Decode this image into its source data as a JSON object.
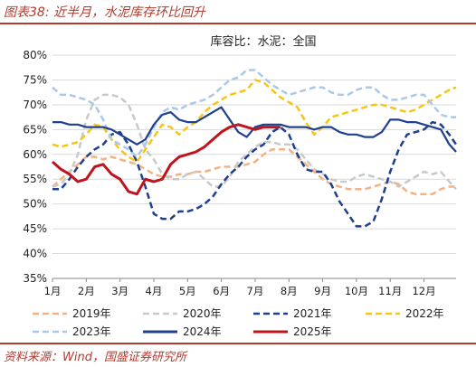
{
  "header": {
    "title": "图表38:  近半月，水泥库存环比回升"
  },
  "footer": {
    "source": "资料来源：Wind，国盛证券研究所"
  },
  "colors": {
    "header_red": "#b03a2e",
    "grid": "#d9d9d9",
    "axis_text": "#222222"
  },
  "chart_data": {
    "type": "line",
    "title": "库容比：水泥：全国",
    "xlabel": "",
    "ylabel": "",
    "x_ticks": [
      "1月",
      "2月",
      "3月",
      "4月",
      "5月",
      "6月",
      "7月",
      "8月",
      "9月",
      "10月",
      "11月",
      "12月"
    ],
    "x_range": [
      1,
      12.95
    ],
    "y_ticks": [
      "35%",
      "40%",
      "45%",
      "50%",
      "55%",
      "60%",
      "65%",
      "70%",
      "75%",
      "80%"
    ],
    "ylim": [
      35,
      80
    ],
    "grid": "horizontal",
    "legend_position": "bottom",
    "series": [
      {
        "name": "2019年",
        "color": "#f4b183",
        "dash": "dashed",
        "width": 2.5,
        "x": [
          1.0,
          1.25,
          1.5,
          1.75,
          2.0,
          2.25,
          2.5,
          2.75,
          3.0,
          3.25,
          3.5,
          3.75,
          4.0,
          4.25,
          4.5,
          4.75,
          5.0,
          5.25,
          5.5,
          5.75,
          6.0,
          6.25,
          6.5,
          6.75,
          7.0,
          7.25,
          7.5,
          7.75,
          8.0,
          8.25,
          8.5,
          8.75,
          9.0,
          9.25,
          9.5,
          9.75,
          10.0,
          10.25,
          10.5,
          10.75,
          11.0,
          11.25,
          11.5,
          11.75,
          12.0,
          12.25,
          12.5,
          12.75,
          12.95
        ],
        "y": [
          53.5,
          55.0,
          56.5,
          58.0,
          59.5,
          59.5,
          59.0,
          59.5,
          59.0,
          58.5,
          58.0,
          57.0,
          56.0,
          55.5,
          55.5,
          56.0,
          56.0,
          56.5,
          56.5,
          57.0,
          57.5,
          57.5,
          57.5,
          58.0,
          58.5,
          60.0,
          61.0,
          61.0,
          61.0,
          59.5,
          58.0,
          56.5,
          55.0,
          54.0,
          53.5,
          53.0,
          53.0,
          53.0,
          53.5,
          54.0,
          54.5,
          54.0,
          52.5,
          52.0,
          52.0,
          52.0,
          53.0,
          53.5,
          53.5
        ]
      },
      {
        "name": "2020年",
        "color": "#c9c9c9",
        "dash": "dashed",
        "width": 2.5,
        "x": [
          1.0,
          1.25,
          1.5,
          1.75,
          2.0,
          2.25,
          2.5,
          2.75,
          3.0,
          3.25,
          3.5,
          3.75,
          4.0,
          4.25,
          4.5,
          4.75,
          5.0,
          5.25,
          5.5,
          5.75,
          6.0,
          6.25,
          6.5,
          6.75,
          7.0,
          7.25,
          7.5,
          7.75,
          8.0,
          8.25,
          8.5,
          8.75,
          9.0,
          9.25,
          9.5,
          9.75,
          10.0,
          10.25,
          10.5,
          10.75,
          11.0,
          11.25,
          11.5,
          11.75,
          12.0,
          12.25,
          12.5,
          12.75,
          12.95
        ],
        "y": [
          53.5,
          54.0,
          56.0,
          60.0,
          67.0,
          71.0,
          72.0,
          72.0,
          71.5,
          70.0,
          66.0,
          61.0,
          59.0,
          56.0,
          55.0,
          55.0,
          56.0,
          56.5,
          55.0,
          53.5,
          53.5,
          55.5,
          58.5,
          60.0,
          61.5,
          62.5,
          62.5,
          62.0,
          62.0,
          61.0,
          59.0,
          57.0,
          56.0,
          55.0,
          54.5,
          54.5,
          55.5,
          56.0,
          55.5,
          55.0,
          54.5,
          53.5,
          54.5,
          55.5,
          56.5,
          56.0,
          56.5,
          54.5,
          53.0
        ]
      },
      {
        "name": "2021年",
        "color": "#1f3f8f",
        "dash": "dashed",
        "width": 2.5,
        "x": [
          1.0,
          1.25,
          1.5,
          1.75,
          2.0,
          2.25,
          2.5,
          2.75,
          3.0,
          3.25,
          3.5,
          3.75,
          4.0,
          4.25,
          4.5,
          4.75,
          5.0,
          5.25,
          5.5,
          5.75,
          6.0,
          6.25,
          6.5,
          6.75,
          7.0,
          7.25,
          7.5,
          7.75,
          8.0,
          8.25,
          8.5,
          8.75,
          9.0,
          9.25,
          9.5,
          9.75,
          10.0,
          10.25,
          10.5,
          10.75,
          11.0,
          11.25,
          11.5,
          11.75,
          12.0,
          12.25,
          12.5,
          12.75,
          12.95
        ],
        "y": [
          53.0,
          53.0,
          55.0,
          57.5,
          59.5,
          61.0,
          62.0,
          64.0,
          64.5,
          62.0,
          58.5,
          53.5,
          48.0,
          47.0,
          47.0,
          48.5,
          48.5,
          49.0,
          50.0,
          51.5,
          54.0,
          56.0,
          57.5,
          59.5,
          61.0,
          62.0,
          64.5,
          65.5,
          64.0,
          60.0,
          57.0,
          56.5,
          56.5,
          54.0,
          50.5,
          48.0,
          45.5,
          45.5,
          46.5,
          51.0,
          56.5,
          61.0,
          64.0,
          64.5,
          65.0,
          66.5,
          66.0,
          64.0,
          62.0
        ]
      },
      {
        "name": "2022年",
        "color": "#f5c518",
        "dash": "dashed",
        "width": 2.5,
        "x": [
          1.0,
          1.25,
          1.5,
          1.75,
          2.0,
          2.25,
          2.5,
          2.75,
          3.0,
          3.25,
          3.5,
          3.75,
          4.0,
          4.25,
          4.5,
          4.75,
          5.0,
          5.25,
          5.5,
          5.75,
          6.0,
          6.25,
          6.5,
          6.75,
          7.0,
          7.25,
          7.5,
          7.75,
          8.0,
          8.25,
          8.5,
          8.75,
          9.0,
          9.25,
          9.5,
          9.75,
          10.0,
          10.25,
          10.5,
          10.75,
          11.0,
          11.25,
          11.5,
          11.75,
          12.0,
          12.25,
          12.5,
          12.75,
          12.95
        ],
        "y": [
          62.0,
          61.5,
          62.0,
          62.5,
          64.0,
          66.0,
          65.5,
          63.0,
          61.0,
          59.5,
          58.5,
          61.0,
          63.5,
          66.0,
          65.5,
          64.0,
          65.5,
          66.5,
          68.5,
          70.0,
          71.0,
          72.0,
          72.5,
          73.0,
          75.0,
          74.5,
          73.0,
          71.5,
          70.5,
          69.5,
          66.5,
          64.0,
          65.5,
          67.5,
          68.0,
          68.5,
          69.0,
          69.5,
          70.0,
          70.0,
          69.5,
          69.0,
          68.5,
          69.0,
          70.0,
          71.0,
          72.0,
          73.0,
          73.5
        ]
      },
      {
        "name": "2023年",
        "color": "#a9c8ea",
        "dash": "dashed",
        "width": 2.5,
        "x": [
          1.0,
          1.25,
          1.5,
          1.75,
          2.0,
          2.25,
          2.5,
          2.75,
          3.0,
          3.25,
          3.5,
          3.75,
          4.0,
          4.25,
          4.5,
          4.75,
          5.0,
          5.25,
          5.5,
          5.75,
          6.0,
          6.25,
          6.5,
          6.75,
          7.0,
          7.25,
          7.5,
          7.75,
          8.0,
          8.25,
          8.5,
          8.75,
          9.0,
          9.25,
          9.5,
          9.75,
          10.0,
          10.25,
          10.5,
          10.75,
          11.0,
          11.25,
          11.5,
          11.75,
          12.0,
          12.25,
          12.5,
          12.75,
          12.95
        ],
        "y": [
          73.5,
          72.0,
          72.0,
          71.5,
          71.0,
          70.0,
          67.0,
          63.0,
          62.0,
          61.0,
          59.5,
          62.0,
          65.5,
          68.5,
          69.5,
          69.0,
          70.0,
          70.5,
          71.0,
          72.0,
          73.5,
          75.0,
          75.5,
          77.0,
          77.0,
          75.5,
          74.0,
          73.0,
          72.0,
          72.5,
          73.0,
          73.5,
          73.5,
          72.5,
          72.0,
          72.0,
          73.0,
          73.5,
          73.5,
          72.0,
          71.0,
          71.0,
          71.5,
          72.0,
          72.0,
          70.0,
          68.0,
          67.5,
          67.5
        ]
      },
      {
        "name": "2024年",
        "color": "#1f3f8f",
        "dash": "solid",
        "width": 2.2,
        "x": [
          1.0,
          1.25,
          1.5,
          1.75,
          2.0,
          2.25,
          2.5,
          2.75,
          3.0,
          3.25,
          3.5,
          3.75,
          4.0,
          4.25,
          4.5,
          4.75,
          5.0,
          5.25,
          5.5,
          5.75,
          6.0,
          6.25,
          6.5,
          6.75,
          7.0,
          7.25,
          7.5,
          7.75,
          8.0,
          8.25,
          8.5,
          8.75,
          9.0,
          9.25,
          9.5,
          9.75,
          10.0,
          10.25,
          10.5,
          10.75,
          11.0,
          11.25,
          11.5,
          11.75,
          12.0,
          12.25,
          12.5,
          12.75,
          12.95
        ],
        "y": [
          66.5,
          66.5,
          66.0,
          66.0,
          65.5,
          65.5,
          65.5,
          65.0,
          64.0,
          63.0,
          62.0,
          63.0,
          66.0,
          68.0,
          68.5,
          67.0,
          66.5,
          66.5,
          67.5,
          68.5,
          69.5,
          67.0,
          64.5,
          63.5,
          65.5,
          66.0,
          66.0,
          66.0,
          65.5,
          65.5,
          65.5,
          65.0,
          65.5,
          65.5,
          64.5,
          64.0,
          64.0,
          63.5,
          63.5,
          64.5,
          67.0,
          67.0,
          66.5,
          66.5,
          66.0,
          65.5,
          65.0,
          62.0,
          60.5
        ]
      },
      {
        "name": "2025年",
        "color": "#c0141c",
        "dash": "solid",
        "width": 3,
        "x": [
          1.0,
          1.25,
          1.5,
          1.75,
          2.0,
          2.25,
          2.5,
          2.75,
          3.0,
          3.25,
          3.5,
          3.75,
          4.0,
          4.25,
          4.5,
          4.75,
          5.0,
          5.25,
          5.5,
          5.75,
          6.0,
          6.25,
          6.5,
          6.75,
          7.0,
          7.25,
          7.5,
          7.75
        ],
        "y": [
          58.5,
          57.0,
          56.0,
          54.5,
          55.0,
          57.5,
          58.0,
          56.0,
          55.0,
          52.5,
          52.0,
          55.0,
          54.5,
          55.0,
          58.0,
          59.5,
          60.0,
          60.5,
          61.5,
          63.0,
          64.5,
          65.5,
          66.0,
          65.5,
          65.0,
          65.5,
          65.5,
          65.5
        ]
      }
    ]
  }
}
